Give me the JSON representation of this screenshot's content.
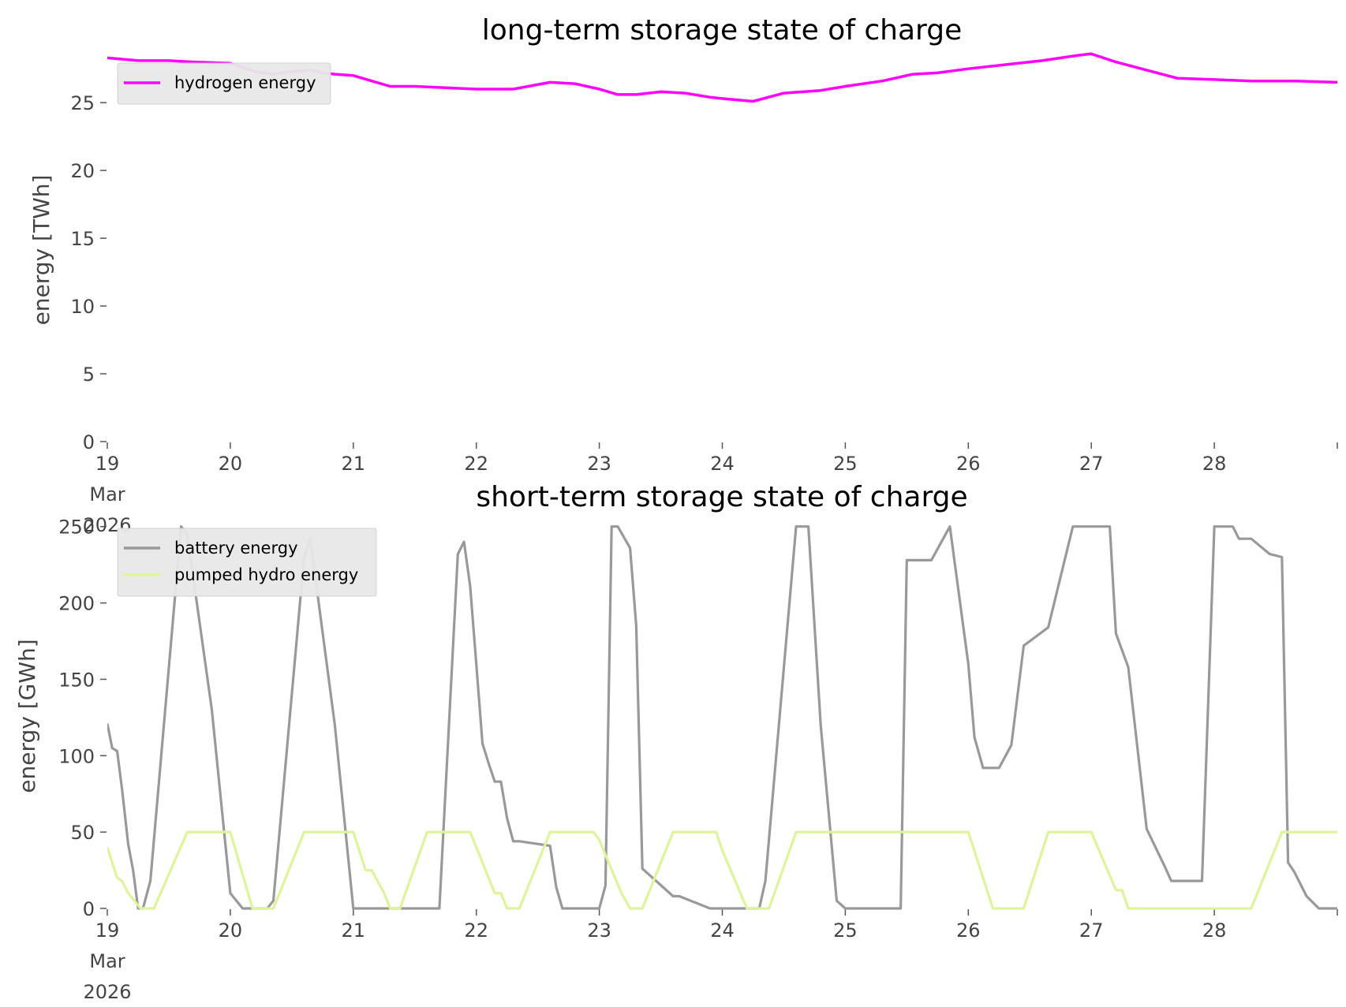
{
  "chart_data": [
    {
      "type": "line",
      "title": "long-term storage state of charge",
      "xlabel": "",
      "ylabel": "energy [TWh]",
      "xlim": [
        0,
        10
      ],
      "ylim": [
        0,
        28.5
      ],
      "yticks": [
        "0",
        "5",
        "10",
        "15",
        "20",
        "25"
      ],
      "ytick_values": [
        0,
        5,
        10,
        15,
        20,
        25
      ],
      "xticks": [
        {
          "value": 0,
          "day": "19",
          "month": "Mar",
          "year": "2026"
        },
        {
          "value": 1,
          "day": "20"
        },
        {
          "value": 2,
          "day": "21"
        },
        {
          "value": 3,
          "day": "22"
        },
        {
          "value": 4,
          "day": "23"
        },
        {
          "value": 5,
          "day": "24"
        },
        {
          "value": 6,
          "day": "25"
        },
        {
          "value": 7,
          "day": "26"
        },
        {
          "value": 8,
          "day": "27"
        },
        {
          "value": 9,
          "day": "28"
        },
        {
          "value": 10,
          "day": ""
        }
      ],
      "grid": false,
      "legend_position": "top-left",
      "series": [
        {
          "name": "hydrogen energy",
          "color": "#ff00ff",
          "x": [
            0,
            0.25,
            0.5,
            0.7,
            1.0,
            1.2,
            1.35,
            1.5,
            1.65,
            1.75,
            1.85,
            2.0,
            2.15,
            2.3,
            2.5,
            2.75,
            3.0,
            3.3,
            3.6,
            3.8,
            4.0,
            4.15,
            4.3,
            4.5,
            4.7,
            4.9,
            5.0,
            5.25,
            5.5,
            5.8,
            6.0,
            6.3,
            6.55,
            6.75,
            7.0,
            7.3,
            7.6,
            7.9,
            8.0,
            8.2,
            8.45,
            8.7,
            9.0,
            9.3,
            9.5,
            9.65,
            10.0
          ],
          "y": [
            28.3,
            28.1,
            28.1,
            28.0,
            27.9,
            27.3,
            27.1,
            27.3,
            27.4,
            27.2,
            27.1,
            27.0,
            26.6,
            26.2,
            26.2,
            26.1,
            26.0,
            26.0,
            26.5,
            26.4,
            26.0,
            25.6,
            25.6,
            25.8,
            25.7,
            25.4,
            25.3,
            25.1,
            25.7,
            25.9,
            26.2,
            26.6,
            27.1,
            27.2,
            27.5,
            27.8,
            28.1,
            28.5,
            28.6,
            28.0,
            27.4,
            26.8,
            26.7,
            26.6,
            26.6,
            26.6,
            26.5
          ]
        }
      ]
    },
    {
      "type": "line",
      "title": "short-term storage state of charge",
      "xlabel": "",
      "ylabel": "energy [GWh]",
      "xlim": [
        0,
        10
      ],
      "ylim": [
        0,
        254
      ],
      "yticks": [
        "0",
        "50",
        "100",
        "150",
        "200",
        "250"
      ],
      "ytick_values": [
        0,
        50,
        100,
        150,
        200,
        250
      ],
      "xticks": [
        {
          "value": 0,
          "day": "19",
          "month": "Mar",
          "year": "2026"
        },
        {
          "value": 1,
          "day": "20"
        },
        {
          "value": 2,
          "day": "21"
        },
        {
          "value": 3,
          "day": "22"
        },
        {
          "value": 4,
          "day": "23"
        },
        {
          "value": 5,
          "day": "24"
        },
        {
          "value": 6,
          "day": "25"
        },
        {
          "value": 7,
          "day": "26"
        },
        {
          "value": 8,
          "day": "27"
        },
        {
          "value": 9,
          "day": "28"
        },
        {
          "value": 10,
          "day": ""
        }
      ],
      "grid": false,
      "legend_position": "top-left",
      "series": [
        {
          "name": "battery energy",
          "color": "#999999",
          "x": [
            0,
            0.04,
            0.08,
            0.12,
            0.17,
            0.21,
            0.25,
            0.29,
            0.35,
            0.6,
            0.65,
            0.85,
            1.0,
            1.1,
            1.25,
            1.3,
            1.35,
            1.6,
            1.65,
            1.85,
            2.0,
            2.3,
            2.35,
            2.6,
            2.65,
            2.7,
            2.85,
            2.9,
            2.95,
            3.0,
            3.05,
            3.1,
            3.15,
            3.2,
            3.25,
            3.3,
            3.35,
            3.6,
            3.65,
            3.7,
            4.0,
            4.05,
            4.1,
            4.15,
            4.25,
            4.3,
            4.35,
            4.6,
            4.65,
            4.9,
            5.0,
            5.15,
            5.3,
            5.35,
            5.6,
            5.7,
            5.8,
            5.93,
            6.0,
            6.1,
            6.2,
            6.27,
            6.38,
            6.45,
            6.5,
            6.6,
            6.7,
            6.85,
            7.0,
            7.05,
            7.12,
            7.2,
            7.25,
            7.35,
            7.45,
            7.65,
            7.85,
            7.95,
            8.05,
            8.1,
            8.15,
            8.2,
            8.3,
            8.45,
            8.6,
            8.65,
            8.7,
            8.9,
            9.0,
            9.05,
            9.1,
            9.15,
            9.2,
            9.3,
            9.45,
            9.55,
            9.6,
            9.65,
            9.75,
            9.85,
            10.0
          ],
          "y": [
            121,
            105,
            103,
            78,
            42,
            25,
            0,
            0,
            18,
            250,
            245,
            130,
            10,
            0,
            0,
            0,
            5,
            230,
            242,
            120,
            0,
            0,
            0,
            0,
            0,
            0,
            232,
            240,
            211,
            160,
            108,
            95,
            83,
            83,
            59,
            44,
            44,
            41,
            14,
            0,
            0,
            15,
            250,
            250,
            236,
            185,
            26,
            8,
            8,
            0,
            0,
            0,
            0,
            18,
            250,
            250,
            120,
            5,
            0,
            0,
            0,
            0,
            0,
            0,
            228,
            228,
            228,
            250,
            160,
            112,
            92,
            92,
            92,
            107,
            172,
            184,
            250,
            250,
            250,
            250,
            250,
            180,
            158,
            52,
            27,
            18,
            18,
            18,
            250,
            250,
            250,
            250,
            242,
            242,
            232,
            230,
            30,
            24,
            8,
            0,
            0
          ],
          "note": ""
        },
        {
          "name": "pumped hydro energy",
          "color": "#ddf39c",
          "x": [
            0,
            0.08,
            0.12,
            0.17,
            0.22,
            0.27,
            0.3,
            0.38,
            0.65,
            0.9,
            1.0,
            1.18,
            1.3,
            1.35,
            1.6,
            1.88,
            2.0,
            2.1,
            2.15,
            2.25,
            2.3,
            2.38,
            2.6,
            2.95,
            3.0,
            3.05,
            3.1,
            3.15,
            3.2,
            3.25,
            3.3,
            3.35,
            3.6,
            3.95,
            4.0,
            4.05,
            4.18,
            4.25,
            4.3,
            4.35,
            4.6,
            4.95,
            5.0,
            5.2,
            5.3,
            5.38,
            5.6,
            6.0,
            7.0,
            7.2,
            7.35,
            7.45,
            7.65,
            7.85,
            8.0,
            8.2,
            8.25,
            8.3,
            8.35,
            8.45,
            9.0,
            9.3,
            9.55,
            9.65,
            10.0
          ],
          "y": [
            40,
            20,
            18,
            10,
            5,
            0,
            0,
            0,
            50,
            50,
            50,
            0,
            0,
            0,
            50,
            50,
            50,
            25,
            25,
            10,
            0,
            0,
            50,
            50,
            40,
            30,
            20,
            10,
            10,
            0,
            0,
            0,
            50,
            50,
            45,
            35,
            10,
            0,
            0,
            0,
            50,
            50,
            38,
            0,
            0,
            0,
            50,
            50,
            50,
            0,
            0,
            0,
            50,
            50,
            50,
            12,
            12,
            0,
            0,
            0,
            0,
            0,
            50,
            50,
            50
          ]
        }
      ]
    }
  ]
}
